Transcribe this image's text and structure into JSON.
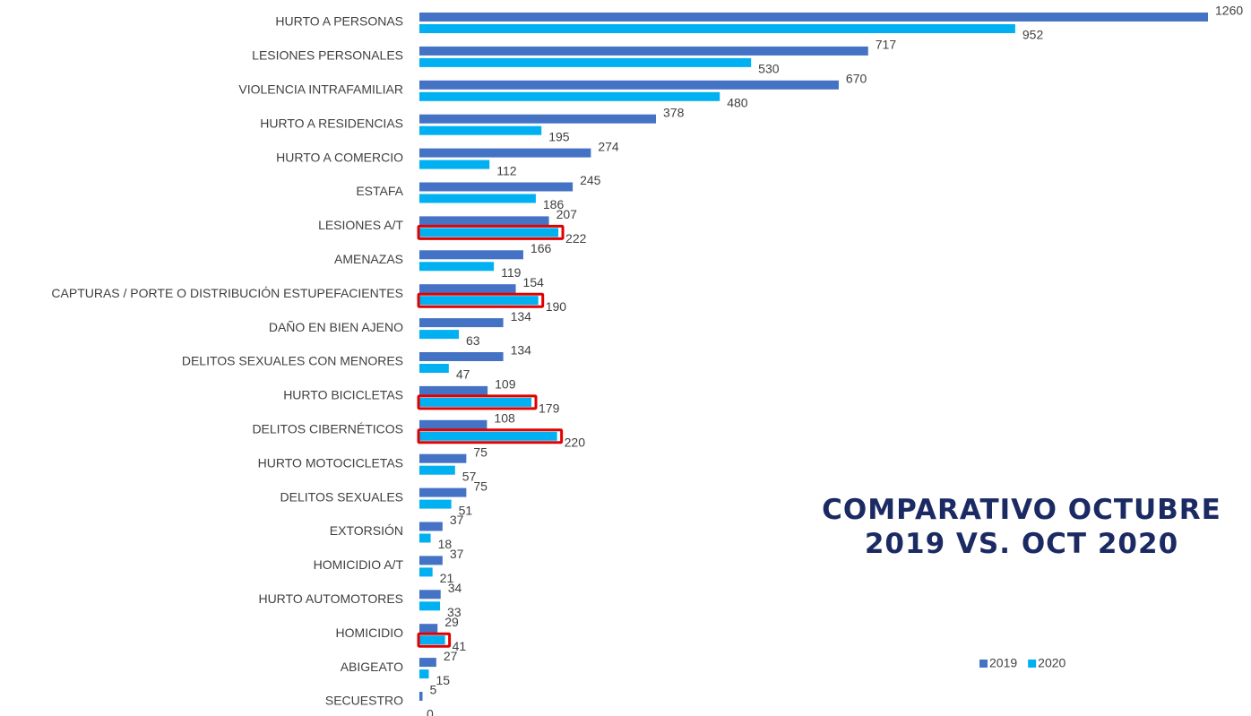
{
  "chart_data": {
    "type": "bar",
    "orientation": "horizontal",
    "title": "COMPARATIVO OCTUBRE 2019 VS. OCT 2020",
    "categories": [
      "HURTO A PERSONAS",
      "LESIONES PERSONALES",
      "VIOLENCIA INTRAFAMILIAR",
      "HURTO A RESIDENCIAS",
      "HURTO A COMERCIO",
      "ESTAFA",
      "LESIONES A/T",
      "AMENAZAS",
      "CAPTURAS / PORTE O DISTRIBUCIÓN ESTUPEFACIENTES",
      "DAÑO EN BIEN AJENO",
      "DELITOS SEXUALES CON MENORES",
      "HURTO BICICLETAS",
      "DELITOS CIBERNÉTICOS",
      "HURTO MOTOCICLETAS",
      "DELITOS SEXUALES",
      "EXTORSIÓN",
      "HOMICIDIO A/T",
      "HURTO AUTOMOTORES",
      "HOMICIDIO",
      "ABIGEATO",
      "SECUESTRO"
    ],
    "series": [
      {
        "name": "2019",
        "color": "#4472c4",
        "values": [
          1260,
          717,
          670,
          378,
          274,
          245,
          207,
          166,
          154,
          134,
          134,
          109,
          108,
          75,
          75,
          37,
          37,
          34,
          29,
          27,
          5
        ]
      },
      {
        "name": "2020",
        "color": "#00b0f0",
        "values": [
          952,
          530,
          480,
          195,
          112,
          186,
          222,
          119,
          190,
          63,
          47,
          179,
          220,
          57,
          51,
          18,
          21,
          33,
          41,
          15,
          0
        ]
      }
    ],
    "highlight_increase": true,
    "highlight_color": "#e00000",
    "legend": "bottom-right"
  }
}
